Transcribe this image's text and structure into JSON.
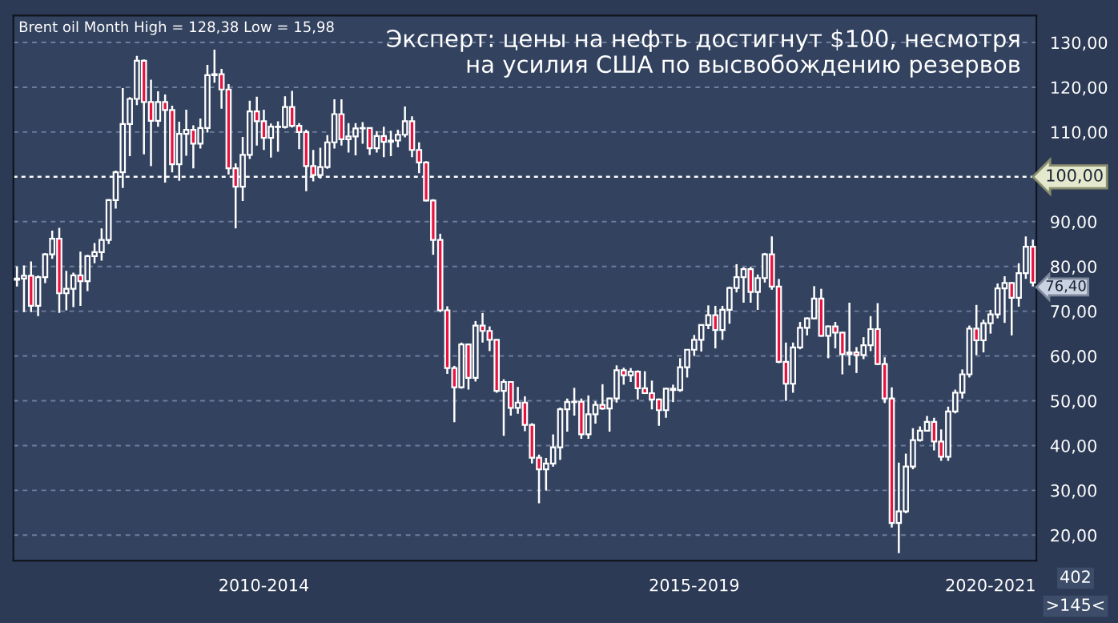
{
  "chart_data": {
    "type": "candlestick",
    "title": "Эксперт: цены на нефть достигнут $100, несмотря\nна усилия США по высвобождению резервов",
    "subtitle": "Brent oil Month High = 128,38 Low = 15,98",
    "categories": [
      null,
      null,
      null,
      null,
      null,
      null,
      null,
      null,
      null,
      null,
      null,
      null,
      null,
      null,
      null,
      null,
      null,
      null,
      null,
      null,
      null,
      null,
      null,
      null,
      null,
      null,
      null,
      null,
      null,
      null,
      null,
      null,
      null,
      null,
      null,
      "2010-2014",
      null,
      null,
      null,
      null,
      null,
      null,
      null,
      null,
      null,
      null,
      null,
      null,
      null,
      null,
      null,
      null,
      null,
      null,
      null,
      null,
      null,
      null,
      null,
      null,
      null,
      null,
      null,
      null,
      null,
      null,
      null,
      null,
      null,
      null,
      null,
      null,
      null,
      null,
      null,
      null,
      null,
      null,
      null,
      null,
      null,
      null,
      null,
      null,
      null,
      null,
      null,
      null,
      null,
      null,
      null,
      null,
      null,
      null,
      null,
      null,
      "2015-2019",
      null,
      null,
      null,
      null,
      null,
      null,
      null,
      null,
      null,
      null,
      null,
      null,
      null,
      null,
      null,
      null,
      null,
      null,
      null,
      null,
      null,
      null,
      null,
      null,
      null,
      null,
      null,
      null,
      null,
      null,
      null,
      null,
      null,
      null,
      null,
      null,
      null,
      null,
      null,
      null,
      null,
      "2020-2021",
      null,
      null,
      null,
      null,
      null,
      null
    ],
    "ohlc": [
      [
        77.0,
        80.0,
        75.5,
        77.3
      ],
      [
        77.3,
        80.2,
        69.8,
        77.9
      ],
      [
        77.9,
        81.1,
        69.8,
        71.2
      ],
      [
        71.2,
        78.0,
        68.9,
        77.6
      ],
      [
        77.6,
        83.0,
        76.3,
        82.7
      ],
      [
        82.7,
        88.0,
        81.7,
        86.2
      ],
      [
        86.2,
        88.6,
        69.6,
        74.0
      ],
      [
        74.0,
        79.0,
        70.2,
        75.0
      ],
      [
        75.0,
        78.6,
        70.9,
        78.0
      ],
      [
        78.0,
        83.3,
        71.2,
        76.7
      ],
      [
        76.7,
        82.6,
        74.5,
        82.3
      ],
      [
        82.3,
        85.2,
        80.7,
        83.2
      ],
      [
        83.2,
        88.5,
        81.3,
        85.9
      ],
      [
        85.9,
        95.0,
        85.0,
        94.8
      ],
      [
        94.8,
        101.4,
        92.9,
        101.0
      ],
      [
        101.0,
        119.8,
        97.5,
        111.8
      ],
      [
        111.8,
        117.8,
        104.6,
        117.4
      ],
      [
        117.4,
        127.0,
        116.0,
        125.9
      ],
      [
        125.9,
        126.2,
        105.0,
        116.7
      ],
      [
        116.7,
        121.7,
        102.4,
        112.5
      ],
      [
        112.5,
        119.1,
        111.2,
        116.7
      ],
      [
        116.7,
        118.4,
        98.7,
        114.9
      ],
      [
        114.9,
        115.9,
        101.0,
        102.8
      ],
      [
        102.8,
        112.3,
        99.1,
        109.6
      ],
      [
        109.6,
        115.0,
        104.7,
        110.5
      ],
      [
        110.5,
        111.5,
        101.9,
        107.4
      ],
      [
        107.4,
        113.0,
        106.3,
        110.9
      ],
      [
        110.9,
        125.0,
        109.9,
        122.7
      ],
      [
        122.7,
        128.38,
        121.0,
        122.9
      ],
      [
        122.9,
        124.1,
        115.2,
        119.5
      ],
      [
        119.5,
        120.7,
        100.5,
        101.9
      ],
      [
        101.9,
        103.0,
        88.5,
        97.8
      ],
      [
        97.8,
        108.9,
        94.6,
        104.9
      ],
      [
        104.9,
        117.0,
        104.0,
        114.6
      ],
      [
        114.6,
        117.9,
        107.0,
        112.4
      ],
      [
        112.4,
        115.0,
        106.0,
        108.7
      ],
      [
        108.7,
        111.9,
        104.3,
        111.2
      ],
      [
        111.2,
        112.4,
        105.6,
        111.1
      ],
      [
        111.1,
        118.0,
        110.8,
        115.6
      ],
      [
        115.6,
        119.2,
        111.0,
        111.4
      ],
      [
        111.4,
        112.0,
        106.2,
        110.0
      ],
      [
        110.0,
        110.5,
        96.8,
        102.4
      ],
      [
        102.4,
        106.0,
        99.0,
        100.4
      ],
      [
        100.4,
        106.5,
        99.6,
        102.2
      ],
      [
        102.2,
        109.3,
        101.8,
        107.7
      ],
      [
        107.7,
        117.3,
        106.3,
        114.0
      ],
      [
        114.0,
        117.3,
        107.0,
        108.4
      ],
      [
        108.4,
        112.0,
        105.4,
        109.0
      ],
      [
        109.0,
        112.0,
        104.8,
        110.8
      ],
      [
        110.8,
        112.2,
        107.4,
        110.9
      ],
      [
        110.9,
        111.0,
        104.9,
        106.4
      ],
      [
        106.4,
        110.2,
        105.4,
        109.1
      ],
      [
        109.1,
        111.2,
        104.4,
        107.8
      ],
      [
        107.8,
        110.3,
        104.6,
        108.1
      ],
      [
        108.1,
        110.5,
        106.6,
        109.4
      ],
      [
        109.4,
        115.7,
        108.8,
        112.4
      ],
      [
        112.4,
        113.5,
        104.4,
        106.0
      ],
      [
        106.0,
        107.7,
        100.8,
        103.2
      ],
      [
        103.2,
        103.5,
        94.5,
        94.7
      ],
      [
        94.7,
        95.0,
        82.6,
        85.9
      ],
      [
        85.9,
        87.3,
        69.8,
        70.2
      ],
      [
        70.2,
        71.1,
        56.0,
        57.3
      ],
      [
        57.3,
        57.8,
        45.2,
        53.0
      ],
      [
        53.0,
        63.0,
        52.7,
        62.6
      ],
      [
        62.6,
        62.8,
        52.5,
        55.1
      ],
      [
        55.1,
        67.8,
        54.3,
        66.8
      ],
      [
        66.8,
        69.6,
        63.0,
        65.6
      ],
      [
        65.6,
        66.6,
        61.1,
        63.6
      ],
      [
        63.6,
        63.7,
        51.8,
        52.2
      ],
      [
        52.2,
        54.8,
        42.2,
        54.2
      ],
      [
        54.2,
        54.3,
        46.7,
        48.4
      ],
      [
        48.4,
        53.1,
        47.1,
        49.6
      ],
      [
        49.6,
        51.0,
        43.2,
        44.6
      ],
      [
        44.6,
        45.0,
        36.0,
        37.3
      ],
      [
        37.3,
        38.0,
        27.1,
        34.7
      ],
      [
        34.7,
        37.2,
        30.0,
        36.0
      ],
      [
        36.0,
        42.5,
        35.3,
        39.6
      ],
      [
        39.6,
        48.5,
        36.8,
        48.1
      ],
      [
        48.1,
        50.5,
        43.1,
        49.7
      ],
      [
        49.7,
        52.9,
        46.7,
        49.8
      ],
      [
        49.8,
        50.5,
        41.5,
        42.5
      ],
      [
        42.5,
        51.2,
        41.5,
        47.0
      ],
      [
        47.0,
        49.9,
        44.9,
        49.1
      ],
      [
        49.1,
        53.7,
        48.0,
        48.3
      ],
      [
        48.3,
        50.7,
        43.1,
        50.5
      ],
      [
        50.5,
        57.9,
        49.6,
        56.8
      ],
      [
        56.8,
        57.4,
        53.6,
        55.7
      ],
      [
        55.7,
        57.3,
        54.2,
        56.5
      ],
      [
        56.5,
        56.8,
        50.3,
        52.8
      ],
      [
        52.8,
        56.6,
        51.5,
        51.7
      ],
      [
        51.7,
        54.5,
        48.1,
        50.3
      ],
      [
        50.3,
        50.5,
        44.4,
        47.9
      ],
      [
        47.9,
        52.9,
        46.2,
        52.7
      ],
      [
        52.7,
        53.6,
        49.7,
        52.4
      ],
      [
        52.4,
        59.5,
        52.0,
        57.5
      ],
      [
        57.5,
        61.5,
        55.2,
        61.4
      ],
      [
        61.4,
        64.7,
        60.0,
        63.6
      ],
      [
        63.6,
        67.0,
        61.0,
        66.9
      ],
      [
        66.9,
        71.3,
        66.0,
        69.1
      ],
      [
        69.1,
        71.2,
        61.7,
        65.8
      ],
      [
        65.8,
        71.2,
        63.6,
        70.3
      ],
      [
        70.3,
        75.5,
        67.2,
        75.2
      ],
      [
        75.2,
        80.5,
        74.2,
        77.6
      ],
      [
        77.6,
        79.8,
        71.9,
        79.4
      ],
      [
        79.4,
        79.9,
        71.9,
        74.3
      ],
      [
        74.3,
        78.2,
        70.3,
        77.4
      ],
      [
        77.4,
        83.0,
        76.4,
        82.7
      ],
      [
        82.7,
        86.7,
        74.8,
        75.5
      ],
      [
        75.5,
        77.2,
        58.4,
        58.7
      ],
      [
        58.7,
        63.0,
        50.0,
        53.8
      ],
      [
        53.8,
        63.0,
        51.8,
        61.9
      ],
      [
        61.9,
        67.6,
        61.5,
        66.3
      ],
      [
        66.3,
        68.6,
        64.6,
        68.4
      ],
      [
        68.4,
        75.6,
        68.2,
        72.8
      ],
      [
        72.8,
        75.0,
        64.3,
        64.5
      ],
      [
        64.5,
        66.8,
        59.5,
        66.6
      ],
      [
        66.6,
        67.6,
        61.7,
        65.2
      ],
      [
        65.2,
        65.4,
        55.9,
        60.4
      ],
      [
        60.4,
        71.9,
        57.9,
        60.8
      ],
      [
        60.8,
        62.0,
        56.2,
        60.2
      ],
      [
        60.2,
        64.2,
        59.3,
        62.4
      ],
      [
        62.4,
        68.9,
        61.1,
        66.0
      ],
      [
        66.0,
        71.8,
        58.0,
        58.2
      ],
      [
        58.2,
        59.7,
        49.5,
        50.5
      ],
      [
        50.5,
        53.0,
        21.7,
        22.7
      ],
      [
        22.7,
        36.2,
        15.98,
        25.3
      ],
      [
        25.3,
        38.2,
        24.9,
        35.3
      ],
      [
        35.3,
        43.9,
        34.7,
        41.2
      ],
      [
        41.2,
        44.3,
        40.9,
        43.3
      ],
      [
        43.3,
        46.6,
        43.2,
        45.3
      ],
      [
        45.3,
        46.2,
        38.9,
        40.9
      ],
      [
        40.9,
        43.6,
        36.6,
        37.5
      ],
      [
        37.5,
        48.7,
        36.6,
        47.6
      ],
      [
        47.6,
        52.5,
        47.2,
        51.8
      ],
      [
        51.8,
        57.0,
        50.5,
        55.9
      ],
      [
        55.9,
        66.8,
        55.2,
        66.1
      ],
      [
        66.1,
        71.4,
        60.2,
        63.5
      ],
      [
        63.5,
        68.1,
        60.8,
        67.3
      ],
      [
        67.3,
        70.3,
        65.0,
        69.3
      ],
      [
        69.3,
        76.2,
        68.4,
        75.1
      ],
      [
        75.1,
        77.8,
        67.4,
        76.3
      ],
      [
        76.3,
        76.5,
        64.6,
        73.0
      ],
      [
        73.0,
        80.7,
        71.0,
        78.5
      ],
      [
        78.5,
        86.7,
        77.2,
        84.4
      ],
      [
        84.4,
        86.0,
        75.5,
        76.4
      ]
    ],
    "ylim": [
      14.3,
      136
    ],
    "yticks": [
      {
        "value": 20,
        "label": "20,00"
      },
      {
        "value": 30,
        "label": "30,00"
      },
      {
        "value": 40,
        "label": "40,00"
      },
      {
        "value": 50,
        "label": "50,00"
      },
      {
        "value": 60,
        "label": "60,00"
      },
      {
        "value": 70,
        "label": "70,00"
      },
      {
        "value": 80,
        "label": "80,00"
      },
      {
        "value": 90,
        "label": "90,00"
      },
      {
        "value": 110,
        "label": "110,00"
      },
      {
        "value": 120,
        "label": "120,00"
      },
      {
        "value": 130,
        "label": "130,00"
      }
    ],
    "ref_lines": [
      {
        "axis": "y",
        "value": 100,
        "label": "100,00",
        "color": "#ffffff",
        "line_style": "dotted"
      }
    ],
    "annotations": [
      "76,40",
      "402",
      ">145<"
    ],
    "grid": "y"
  }
}
